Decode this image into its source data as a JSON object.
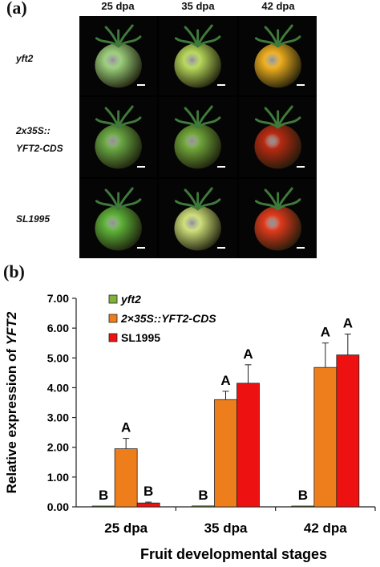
{
  "panel_a": {
    "label": "(a)",
    "stages": [
      "25 dpa",
      "35 dpa",
      "42 dpa"
    ],
    "rows": [
      {
        "label_lines": [
          "yft2"
        ],
        "fruit_colors": [
          "#9ccf7c",
          "#b8d95c",
          "#f0b020"
        ]
      },
      {
        "label_lines": [
          "2x35S::",
          "YFT2-CDS"
        ],
        "fruit_colors": [
          "#6aa844",
          "#6fa53a",
          "#b82a12"
        ]
      },
      {
        "label_lines": [
          "SL1995"
        ],
        "fruit_colors": [
          "#5fb43a",
          "#cfe07a",
          "#e03a1c"
        ]
      }
    ]
  },
  "panel_b": {
    "label": "(b)"
  },
  "chart_data": {
    "type": "bar",
    "xlabel": "Fruit developmental stages",
    "ylabel_prefix": "Relative expression of ",
    "ylabel_gene": "YFT2",
    "categories": [
      "25 dpa",
      "35 dpa",
      "42 dpa"
    ],
    "ylim": [
      0,
      7
    ],
    "yticks": [
      "0.00",
      "1.00",
      "2.00",
      "3.00",
      "4.00",
      "5.00",
      "6.00",
      "7.00"
    ],
    "legend_position": "top-left",
    "series": [
      {
        "name": "yft2",
        "italic": true,
        "color": "#7fb23a",
        "values": [
          0.02,
          0.03,
          0.0
        ],
        "errors": [
          0.0,
          0.0,
          0.0
        ],
        "letters": [
          "B",
          "B",
          "B"
        ]
      },
      {
        "name": "2×35S::YFT2-CDS",
        "italic": true,
        "color": "#ee7d1c",
        "values": [
          1.95,
          3.6,
          4.68
        ],
        "errors": [
          0.35,
          0.28,
          0.82
        ],
        "letters": [
          "A",
          "A",
          "A"
        ]
      },
      {
        "name": "SL1995",
        "italic": false,
        "color": "#ee1111",
        "values": [
          0.13,
          4.15,
          5.1
        ],
        "errors": [
          0.03,
          0.62,
          0.7
        ],
        "letters": [
          "B",
          "A",
          "A"
        ]
      }
    ]
  }
}
